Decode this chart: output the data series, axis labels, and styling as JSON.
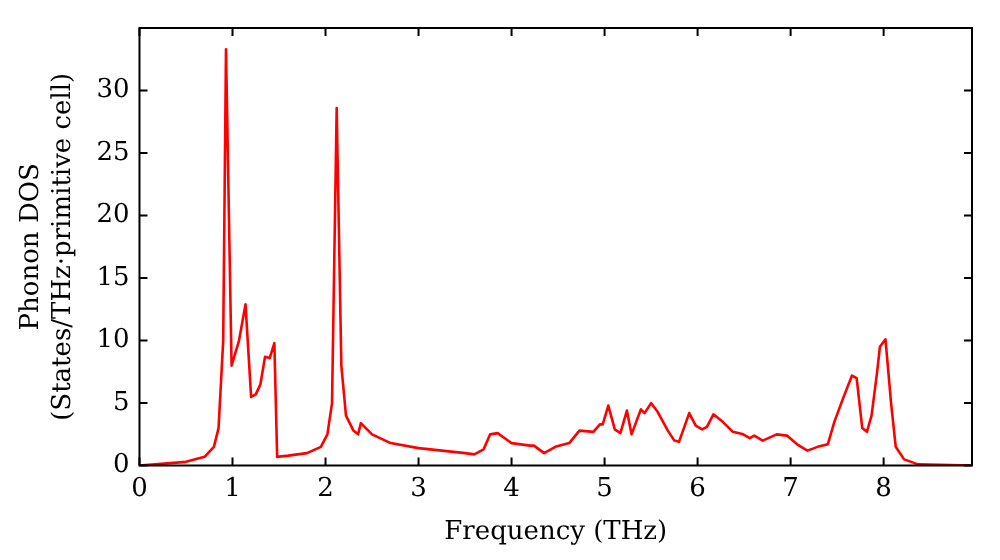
{
  "chart_data": {
    "type": "line",
    "xlabel": "Frequency (THz)",
    "ylabel": "Phonon DOS\n(States/THz·primitive cell)",
    "xlim": [
      0,
      8.95
    ],
    "ylim": [
      0,
      35
    ],
    "xticks": [
      0,
      1,
      2,
      3,
      4,
      5,
      6,
      7,
      8
    ],
    "yticks": [
      0,
      5,
      10,
      15,
      20,
      25,
      30
    ],
    "grid": false,
    "legend": false,
    "marker": "none",
    "line_style": "solid",
    "series": [
      {
        "color": "#ff0000",
        "x": [
          0,
          0.5,
          0.7,
          0.8,
          0.85,
          0.9,
          0.93,
          0.99,
          1.07,
          1.14,
          1.2,
          1.25,
          1.3,
          1.35,
          1.4,
          1.45,
          1.48,
          1.6,
          1.8,
          1.95,
          2.02,
          2.07,
          2.12,
          2.17,
          2.22,
          2.3,
          2.35,
          2.38,
          2.5,
          2.7,
          3.0,
          3.5,
          3.6,
          3.7,
          3.77,
          3.85,
          4.0,
          4.2,
          4.24,
          4.35,
          4.47,
          4.62,
          4.73,
          4.88,
          4.95,
          4.98,
          5.04,
          5.11,
          5.17,
          5.24,
          5.29,
          5.39,
          5.43,
          5.5,
          5.57,
          5.68,
          5.75,
          5.8,
          5.91,
          5.98,
          6.05,
          6.1,
          6.17,
          6.27,
          6.38,
          6.49,
          6.56,
          6.61,
          6.7,
          6.85,
          6.96,
          7.07,
          7.18,
          7.29,
          7.4,
          7.47,
          7.57,
          7.66,
          7.71,
          7.77,
          7.82,
          7.87,
          7.93,
          7.96,
          8.02,
          8.08,
          8.13,
          8.22,
          8.37,
          8.95
        ],
        "values": [
          0,
          0.3,
          0.7,
          1.5,
          3,
          10,
          33.3,
          8,
          10,
          12.9,
          5.5,
          5.7,
          6.5,
          8.7,
          8.6,
          9.8,
          0.7,
          0.8,
          1.0,
          1.5,
          2.5,
          5,
          28.6,
          8,
          4,
          2.8,
          2.5,
          3.4,
          2.5,
          1.8,
          1.4,
          1.0,
          0.9,
          1.3,
          2.5,
          2.6,
          1.8,
          1.6,
          1.6,
          1.0,
          1.5,
          1.8,
          2.8,
          2.7,
          3.3,
          3.3,
          4.8,
          2.9,
          2.6,
          4.4,
          2.5,
          4.5,
          4.2,
          5.0,
          4.3,
          2.8,
          2.0,
          1.9,
          4.2,
          3.2,
          2.9,
          3.1,
          4.1,
          3.5,
          2.7,
          2.5,
          2.2,
          2.4,
          2.0,
          2.5,
          2.4,
          1.7,
          1.2,
          1.5,
          1.7,
          3.5,
          5.5,
          7.2,
          7.0,
          3.0,
          2.7,
          4.0,
          7.5,
          9.5,
          10.1,
          5.0,
          1.5,
          0.5,
          0.1,
          0
        ]
      }
    ]
  }
}
